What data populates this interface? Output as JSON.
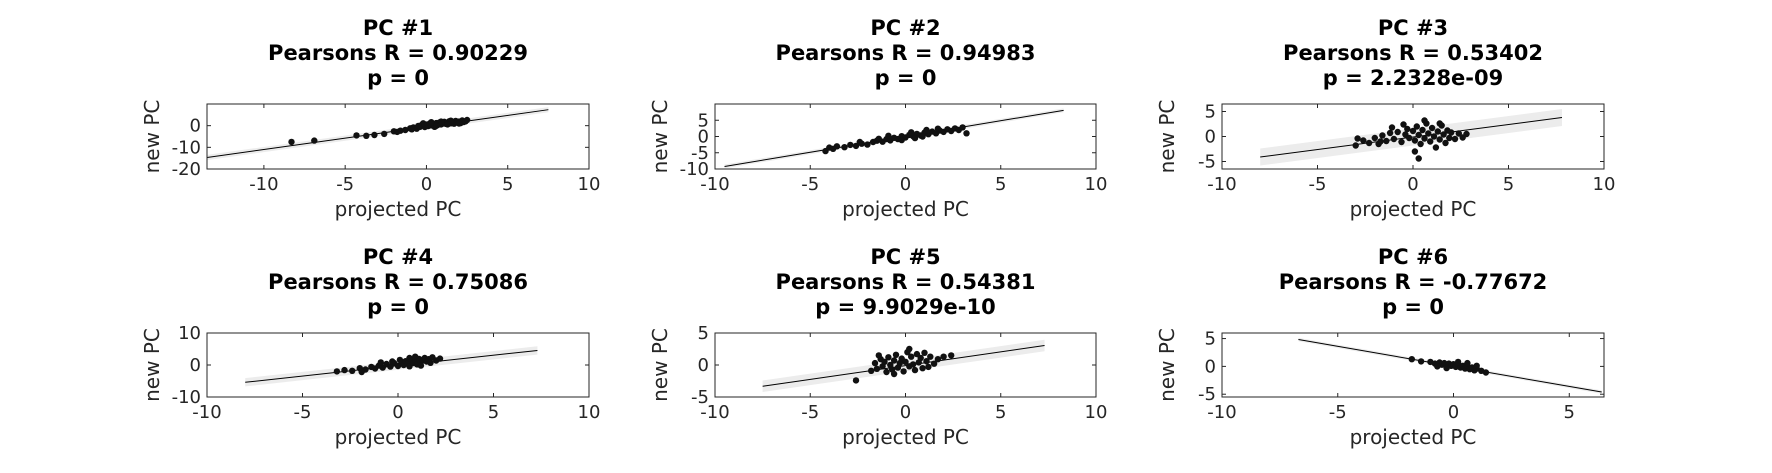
{
  "chart_data": [
    {
      "type": "scatter",
      "title": [
        "PC #1",
        "Pearsons R = 0.90229",
        "p = 0"
      ],
      "xlabel": "projected PC",
      "ylabel": "new PC",
      "xlim": [
        -13.5,
        10
      ],
      "ylim": [
        -20,
        10
      ],
      "xticks": [
        -10,
        -5,
        0,
        5,
        10
      ],
      "yticks": [
        -20,
        -10,
        0
      ],
      "fit": {
        "slope": 1.05,
        "intercept": -0.5,
        "x_range": [
          -13.5,
          7.5
        ],
        "ci_halfwidth": 1.2
      },
      "points": [
        [
          -8.3,
          -7.5
        ],
        [
          -6.9,
          -6.9
        ],
        [
          -4.3,
          -4.5
        ],
        [
          -3.7,
          -4.7
        ],
        [
          -3.2,
          -4.3
        ],
        [
          -2.6,
          -3.8
        ],
        [
          -2.0,
          -2.6
        ],
        [
          -1.6,
          -2.3
        ],
        [
          -1.3,
          -2.0
        ],
        [
          -1.0,
          -1.2
        ],
        [
          -0.8,
          -0.8
        ],
        [
          -0.6,
          -1.4
        ],
        [
          -0.4,
          -0.5
        ],
        [
          -0.3,
          0.3
        ],
        [
          -0.1,
          -0.6
        ],
        [
          0.0,
          0.5
        ],
        [
          0.1,
          -0.2
        ],
        [
          0.2,
          1.0
        ],
        [
          0.3,
          0.1
        ],
        [
          0.4,
          0.8
        ],
        [
          0.5,
          -0.5
        ],
        [
          0.6,
          1.2
        ],
        [
          0.7,
          0.4
        ],
        [
          0.8,
          1.5
        ],
        [
          0.9,
          0.6
        ],
        [
          1.0,
          1.0
        ],
        [
          1.1,
          1.8
        ],
        [
          1.2,
          0.8
        ],
        [
          1.3,
          1.3
        ],
        [
          1.4,
          2.0
        ],
        [
          1.5,
          1.1
        ],
        [
          1.6,
          1.7
        ],
        [
          1.7,
          0.9
        ],
        [
          1.8,
          2.2
        ],
        [
          1.9,
          1.5
        ],
        [
          2.0,
          1.9
        ],
        [
          2.1,
          1.2
        ],
        [
          2.2,
          2.4
        ],
        [
          2.3,
          1.7
        ],
        [
          2.4,
          2.0
        ],
        [
          2.5,
          2.6
        ],
        [
          -0.2,
          1.1
        ],
        [
          0.3,
          1.6
        ],
        [
          0.9,
          1.9
        ],
        [
          1.5,
          2.3
        ],
        [
          -0.5,
          -0.1
        ],
        [
          0.6,
          -0.1
        ],
        [
          1.3,
          0.6
        ],
        [
          2.0,
          1.0
        ],
        [
          -1.8,
          -2.9
        ],
        [
          -0.9,
          -1.7
        ]
      ]
    },
    {
      "type": "scatter",
      "title": [
        "PC #2",
        "Pearsons R = 0.94983",
        "p = 0"
      ],
      "xlabel": "projected PC",
      "ylabel": "new PC",
      "xlim": [
        -10,
        10
      ],
      "ylim": [
        -10,
        10
      ],
      "xticks": [
        -10,
        -5,
        0,
        5,
        10
      ],
      "yticks": [
        -10,
        -5,
        0,
        5
      ],
      "fit": {
        "slope": 0.97,
        "intercept": 0,
        "x_range": [
          -9.5,
          8.3
        ],
        "ci_halfwidth": 0.6
      },
      "points": [
        [
          -4.2,
          -4.5
        ],
        [
          -4.0,
          -3.4
        ],
        [
          -3.6,
          -3.0
        ],
        [
          -3.2,
          -3.3
        ],
        [
          -2.9,
          -2.6
        ],
        [
          -2.6,
          -2.9
        ],
        [
          -2.3,
          -2.2
        ],
        [
          -2.0,
          -2.5
        ],
        [
          -1.7,
          -1.7
        ],
        [
          -1.5,
          -1.3
        ],
        [
          -1.2,
          -1.6
        ],
        [
          -1.0,
          -0.8
        ],
        [
          -0.8,
          -1.2
        ],
        [
          -0.6,
          -0.4
        ],
        [
          -0.4,
          -0.8
        ],
        [
          -0.2,
          0.1
        ],
        [
          0.0,
          -0.3
        ],
        [
          0.2,
          0.5
        ],
        [
          0.4,
          0.1
        ],
        [
          0.6,
          0.8
        ],
        [
          0.8,
          0.3
        ],
        [
          1.0,
          1.2
        ],
        [
          1.2,
          0.7
        ],
        [
          1.4,
          1.5
        ],
        [
          1.6,
          1.0
        ],
        [
          1.8,
          1.8
        ],
        [
          2.0,
          1.4
        ],
        [
          2.2,
          2.2
        ],
        [
          2.4,
          1.7
        ],
        [
          2.6,
          2.5
        ],
        [
          2.8,
          2.0
        ],
        [
          3.0,
          2.8
        ],
        [
          3.2,
          1.0
        ],
        [
          -3.8,
          -3.8
        ],
        [
          -1.4,
          -0.7
        ],
        [
          0.5,
          -0.5
        ],
        [
          1.1,
          2.0
        ],
        [
          -0.9,
          0.2
        ],
        [
          0.3,
          1.3
        ],
        [
          1.7,
          2.4
        ],
        [
          -2.4,
          -1.7
        ],
        [
          0.9,
          0.0
        ],
        [
          -0.2,
          -1.1
        ]
      ]
    },
    {
      "type": "scatter",
      "title": [
        "PC #3",
        "Pearsons R = 0.53402",
        "p = 2.2328e-09"
      ],
      "xlabel": "projected PC",
      "ylabel": "new PC",
      "xlim": [
        -10,
        10
      ],
      "ylim": [
        -6.5,
        6.5
      ],
      "xticks": [
        -10,
        -5,
        0,
        5,
        10
      ],
      "yticks": [
        -5,
        0,
        5
      ],
      "fit": {
        "slope": 0.5,
        "intercept": -0.1,
        "x_range": [
          -8,
          7.8
        ],
        "ci_halfwidth": 1.7
      },
      "points": [
        [
          -3.0,
          -1.8
        ],
        [
          -2.6,
          -0.8
        ],
        [
          -2.3,
          -1.3
        ],
        [
          -2.0,
          -0.3
        ],
        [
          -1.8,
          -1.5
        ],
        [
          -1.6,
          0.2
        ],
        [
          -1.4,
          -0.9
        ],
        [
          -1.2,
          0.7
        ],
        [
          -1.0,
          -0.5
        ],
        [
          -0.8,
          0.9
        ],
        [
          -0.6,
          -1.1
        ],
        [
          -0.4,
          0.4
        ],
        [
          -0.3,
          1.5
        ],
        [
          -0.2,
          -0.3
        ],
        [
          0.0,
          1.1
        ],
        [
          0.1,
          -0.8
        ],
        [
          0.2,
          2.0
        ],
        [
          0.3,
          0.3
        ],
        [
          0.4,
          -1.5
        ],
        [
          0.5,
          1.3
        ],
        [
          0.6,
          -0.4
        ],
        [
          0.7,
          2.6
        ],
        [
          0.8,
          0.6
        ],
        [
          0.9,
          -1.0
        ],
        [
          1.0,
          1.7
        ],
        [
          1.1,
          0.0
        ],
        [
          1.2,
          -2.2
        ],
        [
          1.3,
          1.0
        ],
        [
          1.4,
          -0.6
        ],
        [
          1.5,
          2.2
        ],
        [
          1.6,
          0.4
        ],
        [
          1.7,
          -1.3
        ],
        [
          1.8,
          1.2
        ],
        [
          1.9,
          -0.3
        ],
        [
          2.0,
          0.8
        ],
        [
          2.2,
          -0.5
        ],
        [
          2.4,
          0.6
        ],
        [
          2.6,
          -0.2
        ],
        [
          2.8,
          0.5
        ],
        [
          -0.5,
          2.4
        ],
        [
          0.3,
          -4.4
        ],
        [
          -2.9,
          -0.4
        ],
        [
          -1.1,
          1.8
        ],
        [
          0.6,
          3.2
        ],
        [
          1.4,
          2.6
        ],
        [
          0.1,
          -3.0
        ],
        [
          -1.7,
          -1.0
        ]
      ]
    },
    {
      "type": "scatter",
      "title": [
        "PC #4",
        "Pearsons R = 0.75086",
        "p = 0"
      ],
      "xlabel": "projected PC",
      "ylabel": "new PC",
      "xlim": [
        -10,
        10
      ],
      "ylim": [
        -10,
        10
      ],
      "xticks": [
        -10,
        -5,
        0,
        5,
        10
      ],
      "yticks": [
        -10,
        0,
        10
      ],
      "fit": {
        "slope": 0.65,
        "intercept": -0.2,
        "x_range": [
          -8,
          7.3
        ],
        "ci_halfwidth": 1.3
      },
      "points": [
        [
          -3.2,
          -2.0
        ],
        [
          -2.8,
          -1.6
        ],
        [
          -2.4,
          -1.8
        ],
        [
          -2.0,
          -1.0
        ],
        [
          -1.7,
          -1.4
        ],
        [
          -1.4,
          -0.6
        ],
        [
          -1.2,
          -1.1
        ],
        [
          -1.0,
          -0.2
        ],
        [
          -0.8,
          -0.8
        ],
        [
          -0.6,
          0.3
        ],
        [
          -0.4,
          -0.5
        ],
        [
          -0.2,
          0.6
        ],
        [
          0.0,
          -0.3
        ],
        [
          0.2,
          0.9
        ],
        [
          0.3,
          0.0
        ],
        [
          0.4,
          1.2
        ],
        [
          0.5,
          0.4
        ],
        [
          0.6,
          -0.4
        ],
        [
          0.7,
          1.4
        ],
        [
          0.8,
          0.6
        ],
        [
          0.9,
          1.7
        ],
        [
          1.0,
          0.2
        ],
        [
          1.1,
          1.9
        ],
        [
          1.2,
          0.9
        ],
        [
          1.3,
          1.5
        ],
        [
          1.4,
          2.2
        ],
        [
          1.5,
          1.1
        ],
        [
          1.6,
          1.8
        ],
        [
          1.7,
          0.7
        ],
        [
          1.8,
          2.4
        ],
        [
          2.0,
          1.4
        ],
        [
          2.2,
          2.0
        ],
        [
          -1.9,
          -2.2
        ],
        [
          -0.9,
          0.8
        ],
        [
          0.1,
          1.6
        ],
        [
          0.6,
          2.2
        ],
        [
          1.2,
          -0.2
        ],
        [
          -0.3,
          1.1
        ],
        [
          0.9,
          2.6
        ]
      ]
    },
    {
      "type": "scatter",
      "title": [
        "PC #5",
        "Pearsons R = 0.54381",
        "p = 9.9029e-10"
      ],
      "xlabel": "projected PC",
      "ylabel": "new PC",
      "xlim": [
        -10,
        10
      ],
      "ylim": [
        -5,
        5
      ],
      "xticks": [
        -10,
        -5,
        0,
        5,
        10
      ],
      "yticks": [
        -5,
        0,
        5
      ],
      "fit": {
        "slope": 0.43,
        "intercept": -0.1,
        "x_range": [
          -7.5,
          7.3
        ],
        "ci_halfwidth": 0.9
      },
      "points": [
        [
          -2.6,
          -2.4
        ],
        [
          -1.8,
          -0.9
        ],
        [
          -1.6,
          0.3
        ],
        [
          -1.5,
          -0.6
        ],
        [
          -1.3,
          0.9
        ],
        [
          -1.2,
          -0.2
        ],
        [
          -1.1,
          0.5
        ],
        [
          -1.0,
          -1.1
        ],
        [
          -0.9,
          1.2
        ],
        [
          -0.8,
          0.0
        ],
        [
          -0.7,
          -0.7
        ],
        [
          -0.6,
          0.7
        ],
        [
          -0.5,
          1.6
        ],
        [
          -0.4,
          -0.4
        ],
        [
          -0.3,
          0.3
        ],
        [
          -0.2,
          1.0
        ],
        [
          -0.1,
          -1.0
        ],
        [
          0.0,
          0.5
        ],
        [
          0.1,
          2.0
        ],
        [
          0.2,
          -0.2
        ],
        [
          0.3,
          1.3
        ],
        [
          0.4,
          0.1
        ],
        [
          0.5,
          -0.8
        ],
        [
          0.6,
          1.7
        ],
        [
          0.7,
          0.4
        ],
        [
          0.8,
          1.1
        ],
        [
          0.9,
          -0.5
        ],
        [
          1.0,
          1.9
        ],
        [
          1.1,
          0.6
        ],
        [
          1.2,
          -0.3
        ],
        [
          1.3,
          1.3
        ],
        [
          1.5,
          0.2
        ],
        [
          1.7,
          0.9
        ],
        [
          2.0,
          1.3
        ],
        [
          2.4,
          1.5
        ],
        [
          -1.4,
          1.5
        ],
        [
          0.2,
          2.5
        ],
        [
          -0.6,
          -1.4
        ]
      ]
    },
    {
      "type": "scatter",
      "title": [
        "PC #6",
        "Pearsons R = -0.77672",
        "p = 0"
      ],
      "xlabel": "projected PC",
      "ylabel": "new PC",
      "xlim": [
        -10,
        6.5
      ],
      "ylim": [
        -5.5,
        6
      ],
      "xticks": [
        -10,
        -5,
        0,
        5
      ],
      "yticks": [
        -5,
        0,
        5
      ],
      "fit": {
        "slope": -0.72,
        "intercept": 0,
        "x_range": [
          -6.7,
          6.4
        ],
        "ci_halfwidth": 0.3
      },
      "points": [
        [
          -1.8,
          1.3
        ],
        [
          -1.4,
          0.9
        ],
        [
          -1.0,
          0.8
        ],
        [
          -0.8,
          0.5
        ],
        [
          -0.6,
          0.7
        ],
        [
          -0.5,
          0.3
        ],
        [
          -0.4,
          0.6
        ],
        [
          -0.3,
          0.2
        ],
        [
          -0.2,
          0.5
        ],
        [
          -0.1,
          0.1
        ],
        [
          0.0,
          0.4
        ],
        [
          0.1,
          -0.1
        ],
        [
          0.2,
          0.3
        ],
        [
          0.3,
          -0.2
        ],
        [
          0.4,
          0.1
        ],
        [
          0.5,
          -0.4
        ],
        [
          0.6,
          0.0
        ],
        [
          0.7,
          -0.5
        ],
        [
          0.8,
          -0.2
        ],
        [
          0.9,
          -0.7
        ],
        [
          1.0,
          -0.4
        ],
        [
          1.2,
          -0.8
        ],
        [
          1.4,
          -1.1
        ],
        [
          -0.7,
          0.0
        ],
        [
          0.2,
          0.8
        ],
        [
          0.6,
          0.6
        ],
        [
          -0.3,
          -0.3
        ],
        [
          1.0,
          0.1
        ]
      ]
    }
  ]
}
